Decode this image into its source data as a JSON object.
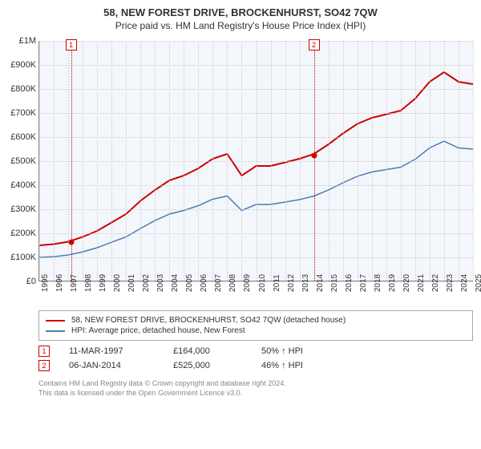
{
  "title": "58, NEW FOREST DRIVE, BROCKENHURST, SO42 7QW",
  "subtitle": "Price paid vs. HM Land Registry's House Price Index (HPI)",
  "chart": {
    "type": "line",
    "background": "#f3f6fb",
    "grid_color": "#cccccc",
    "ylim": [
      0,
      1000000
    ],
    "yticks": [
      0,
      100000,
      200000,
      300000,
      400000,
      500000,
      600000,
      700000,
      800000,
      900000,
      1000000
    ],
    "ytick_labels": [
      "£0",
      "£100K",
      "£200K",
      "£300K",
      "£400K",
      "£500K",
      "£600K",
      "£700K",
      "£800K",
      "£900K",
      "£1M"
    ],
    "xlim": [
      1995,
      2025
    ],
    "xticks": [
      1995,
      1996,
      1997,
      1998,
      1999,
      2000,
      2001,
      2002,
      2003,
      2004,
      2005,
      2006,
      2007,
      2008,
      2009,
      2010,
      2011,
      2012,
      2013,
      2014,
      2015,
      2016,
      2017,
      2018,
      2019,
      2020,
      2021,
      2022,
      2023,
      2024,
      2025
    ],
    "series": [
      {
        "name": "property",
        "label": "58, NEW FOREST DRIVE, BROCKENHURST, SO42 7QW (detached house)",
        "color": "#cc0000",
        "width": 2,
        "points": [
          [
            1995,
            150000
          ],
          [
            1996,
            155000
          ],
          [
            1997,
            165000
          ],
          [
            1998,
            185000
          ],
          [
            1999,
            210000
          ],
          [
            2000,
            245000
          ],
          [
            2001,
            280000
          ],
          [
            2002,
            335000
          ],
          [
            2003,
            380000
          ],
          [
            2004,
            420000
          ],
          [
            2005,
            440000
          ],
          [
            2006,
            470000
          ],
          [
            2007,
            510000
          ],
          [
            2008,
            530000
          ],
          [
            2009,
            440000
          ],
          [
            2010,
            480000
          ],
          [
            2011,
            480000
          ],
          [
            2012,
            495000
          ],
          [
            2013,
            510000
          ],
          [
            2014,
            530000
          ],
          [
            2015,
            570000
          ],
          [
            2016,
            615000
          ],
          [
            2017,
            655000
          ],
          [
            2018,
            680000
          ],
          [
            2019,
            695000
          ],
          [
            2020,
            710000
          ],
          [
            2021,
            760000
          ],
          [
            2022,
            830000
          ],
          [
            2023,
            870000
          ],
          [
            2024,
            830000
          ],
          [
            2025,
            820000
          ]
        ]
      },
      {
        "name": "hpi",
        "label": "HPI: Average price, detached house, New Forest",
        "color": "#4a7fb5",
        "width": 1.5,
        "points": [
          [
            1995,
            100000
          ],
          [
            1996,
            103000
          ],
          [
            1997,
            110000
          ],
          [
            1998,
            123000
          ],
          [
            1999,
            140000
          ],
          [
            2000,
            163000
          ],
          [
            2001,
            185000
          ],
          [
            2002,
            220000
          ],
          [
            2003,
            253000
          ],
          [
            2004,
            280000
          ],
          [
            2005,
            295000
          ],
          [
            2006,
            315000
          ],
          [
            2007,
            342000
          ],
          [
            2008,
            355000
          ],
          [
            2009,
            295000
          ],
          [
            2010,
            320000
          ],
          [
            2011,
            320000
          ],
          [
            2012,
            330000
          ],
          [
            2013,
            340000
          ],
          [
            2014,
            355000
          ],
          [
            2015,
            380000
          ],
          [
            2016,
            410000
          ],
          [
            2017,
            437000
          ],
          [
            2018,
            455000
          ],
          [
            2019,
            465000
          ],
          [
            2020,
            475000
          ],
          [
            2021,
            508000
          ],
          [
            2022,
            555000
          ],
          [
            2023,
            583000
          ],
          [
            2024,
            555000
          ],
          [
            2025,
            550000
          ]
        ]
      }
    ],
    "markers": [
      {
        "id": "1",
        "x": 1997.2,
        "y": 164000,
        "color": "#cc0000"
      },
      {
        "id": "2",
        "x": 2014.0,
        "y": 525000,
        "color": "#cc0000"
      }
    ]
  },
  "sales": [
    {
      "id": "1",
      "date": "11-MAR-1997",
      "price": "£164,000",
      "pct": "50% ↑ HPI",
      "border": "#cc0000"
    },
    {
      "id": "2",
      "date": "06-JAN-2014",
      "price": "£525,000",
      "pct": "46% ↑ HPI",
      "border": "#cc0000"
    }
  ],
  "footer": {
    "line1": "Contains HM Land Registry data © Crown copyright and database right 2024.",
    "line2": "This data is licensed under the Open Government Licence v3.0."
  }
}
